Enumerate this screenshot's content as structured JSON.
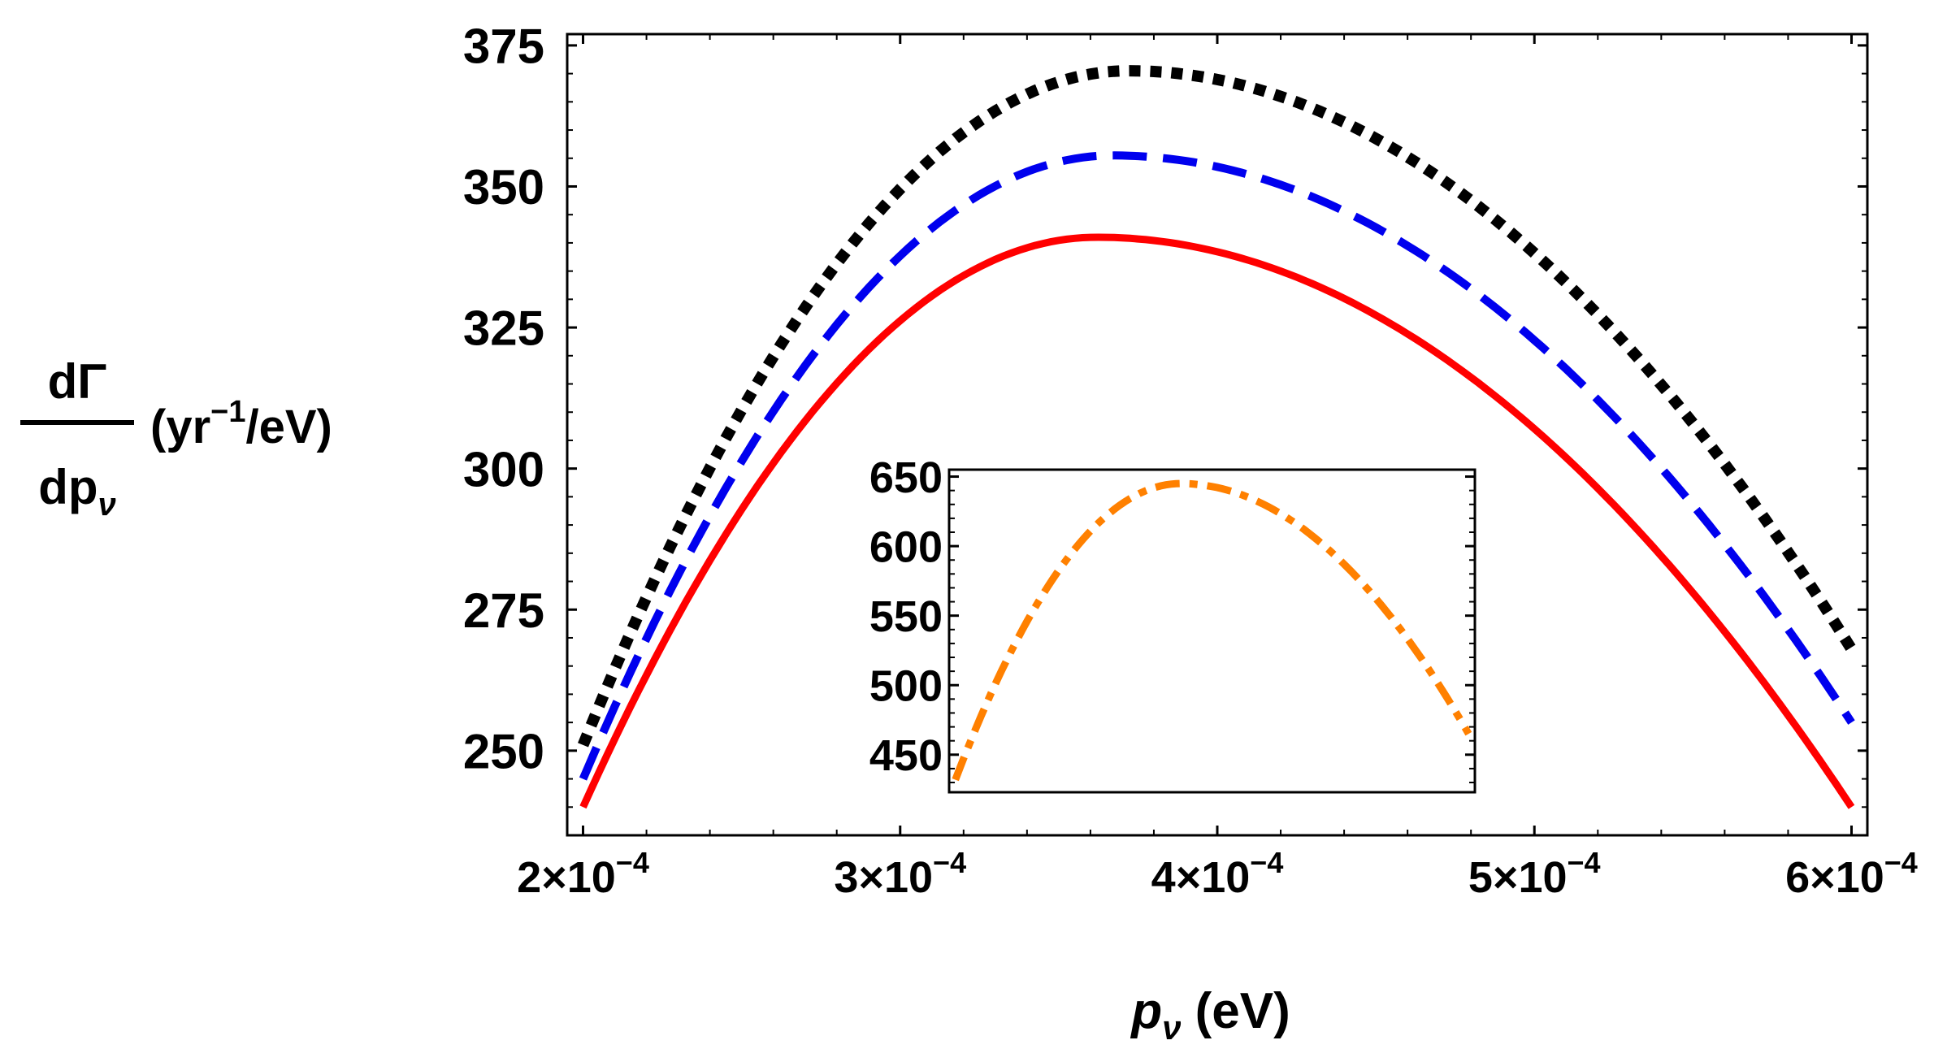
{
  "chart_data": [
    {
      "type": "line",
      "panel": "main",
      "title": "",
      "xlabel": {
        "symbol": "p",
        "subscript": "ν",
        "unit": "(eV)"
      },
      "ylabel": {
        "numerator": "dΓ",
        "denominator": "dp",
        "denominator_subscript": "ν",
        "unit_prefix": "(yr",
        "unit_exponent": "−1",
        "unit_suffix": "/eV)"
      },
      "xlim": [
        0.000195,
        0.000605
      ],
      "ylim": [
        235,
        377
      ],
      "x_ticks": [
        0.0002,
        0.0003,
        0.0004,
        0.0005,
        0.0006
      ],
      "x_tick_labels": [
        {
          "mantissa": "2×10",
          "exponent": "−4"
        },
        {
          "mantissa": "3×10",
          "exponent": "−4"
        },
        {
          "mantissa": "4×10",
          "exponent": "−4"
        },
        {
          "mantissa": "5×10",
          "exponent": "−4"
        },
        {
          "mantissa": "6×10",
          "exponent": "−4"
        }
      ],
      "y_ticks": [
        250,
        275,
        300,
        325,
        350,
        375
      ],
      "y_tick_labels": [
        "250",
        "275",
        "300",
        "325",
        "350",
        "375"
      ],
      "grid": false,
      "legend": "none",
      "series": [
        {
          "name": "dotted-black",
          "color": "#000000",
          "style": "dotted",
          "peak_x": 0.000372,
          "peak_y": 370.5,
          "left_x": 0.0002,
          "left_y": 251,
          "right_x": 0.0006,
          "right_y": 268
        },
        {
          "name": "dashed-blue",
          "color": "#0000ee",
          "style": "dashed",
          "peak_x": 0.000367,
          "peak_y": 355.5,
          "left_x": 0.0002,
          "left_y": 245,
          "right_x": 0.0006,
          "right_y": 255
        },
        {
          "name": "solid-red",
          "color": "#ff0000",
          "style": "solid",
          "peak_x": 0.000362,
          "peak_y": 341,
          "left_x": 0.0002,
          "left_y": 240,
          "right_x": 0.0006,
          "right_y": 240
        }
      ]
    },
    {
      "type": "line",
      "panel": "inset",
      "title": "",
      "xlabel": "",
      "ylabel": "",
      "xlim": [
        0.000314,
        0.000482
      ],
      "ylim": [
        423,
        655
      ],
      "y_ticks": [
        450,
        500,
        550,
        600,
        650
      ],
      "y_tick_labels": [
        "450",
        "500",
        "550",
        "600",
        "650"
      ],
      "grid": false,
      "legend": "none",
      "series": [
        {
          "name": "dotdashed-orange",
          "color": "#ff8000",
          "style": "dot-dash",
          "start_x": 0.000316,
          "start_y": 432,
          "peak_x": 0.000388,
          "peak_y": 645,
          "end_x": 0.00048,
          "end_y": 465
        }
      ]
    }
  ]
}
